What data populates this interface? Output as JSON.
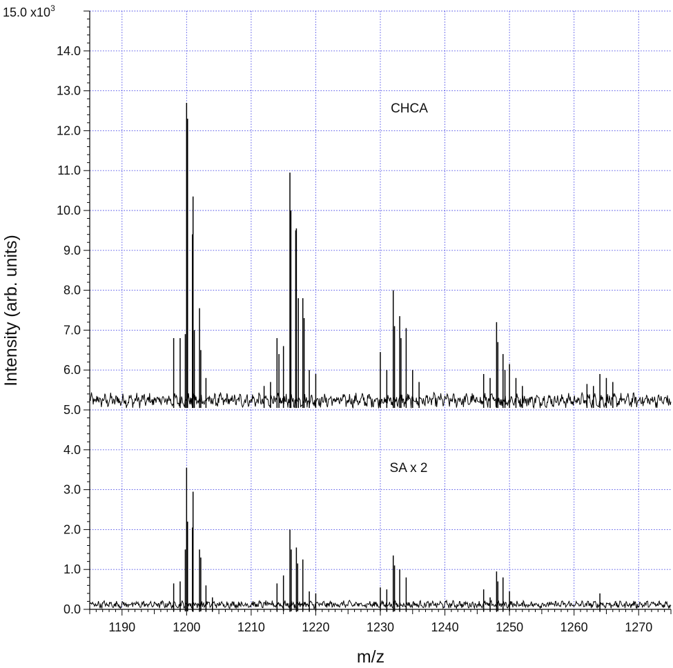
{
  "chart_data": {
    "type": "line",
    "title": "",
    "xlabel": "m/z",
    "ylabel": "Intensity (arb. units)",
    "xlim": [
      1185,
      1275
    ],
    "ylim": [
      0,
      15000
    ],
    "x_ticks": [
      1190,
      1200,
      1210,
      1220,
      1230,
      1240,
      1250,
      1260,
      1270
    ],
    "x_tick_labels": [
      "1190",
      "1200",
      "1210",
      "1220",
      "1230",
      "1240",
      "1250",
      "1260",
      "1270"
    ],
    "y_ticks": [
      0,
      1000,
      2000,
      3000,
      4000,
      5000,
      6000,
      7000,
      8000,
      9000,
      10000,
      11000,
      12000,
      13000,
      14000,
      15000
    ],
    "y_tick_labels": [
      "0.0",
      "1.0",
      "2.0",
      "3.0",
      "4.0",
      "5.0",
      "6.0",
      "7.0",
      "8.0",
      "9.0",
      "10.0",
      "11.0",
      "12.0",
      "13.0",
      "14.0",
      "15.0"
    ],
    "y_multiplier_label": "x10",
    "y_multiplier_exponent": "3",
    "grid": true,
    "series": [
      {
        "name": "CHCA",
        "baseline": 5200,
        "peaks": [
          {
            "x": 1198.0,
            "y": 6800
          },
          {
            "x": 1199.0,
            "y": 6800
          },
          {
            "x": 1199.8,
            "y": 6900
          },
          {
            "x": 1200.0,
            "y": 12700
          },
          {
            "x": 1200.15,
            "y": 12300
          },
          {
            "x": 1200.9,
            "y": 9400
          },
          {
            "x": 1201.0,
            "y": 10350
          },
          {
            "x": 1201.2,
            "y": 7000
          },
          {
            "x": 1202.0,
            "y": 7550
          },
          {
            "x": 1202.2,
            "y": 6500
          },
          {
            "x": 1203.0,
            "y": 5800
          },
          {
            "x": 1212.0,
            "y": 5600
          },
          {
            "x": 1213.0,
            "y": 5700
          },
          {
            "x": 1214.0,
            "y": 6800
          },
          {
            "x": 1214.3,
            "y": 6400
          },
          {
            "x": 1215.0,
            "y": 6600
          },
          {
            "x": 1216.0,
            "y": 10950
          },
          {
            "x": 1216.15,
            "y": 10000
          },
          {
            "x": 1216.9,
            "y": 9500
          },
          {
            "x": 1217.0,
            "y": 9550
          },
          {
            "x": 1217.3,
            "y": 7800
          },
          {
            "x": 1218.0,
            "y": 7800
          },
          {
            "x": 1218.2,
            "y": 7300
          },
          {
            "x": 1219.0,
            "y": 6000
          },
          {
            "x": 1220.0,
            "y": 5900
          },
          {
            "x": 1230.0,
            "y": 6450
          },
          {
            "x": 1231.0,
            "y": 6000
          },
          {
            "x": 1232.0,
            "y": 8000
          },
          {
            "x": 1232.2,
            "y": 7100
          },
          {
            "x": 1233.0,
            "y": 7350
          },
          {
            "x": 1233.2,
            "y": 6800
          },
          {
            "x": 1234.0,
            "y": 7050
          },
          {
            "x": 1235.0,
            "y": 6000
          },
          {
            "x": 1236.0,
            "y": 5700
          },
          {
            "x": 1246.0,
            "y": 5900
          },
          {
            "x": 1247.0,
            "y": 5800
          },
          {
            "x": 1248.0,
            "y": 7200
          },
          {
            "x": 1248.2,
            "y": 6700
          },
          {
            "x": 1249.0,
            "y": 6400
          },
          {
            "x": 1249.3,
            "y": 6000
          },
          {
            "x": 1250.0,
            "y": 6150
          },
          {
            "x": 1251.0,
            "y": 5800
          },
          {
            "x": 1252.0,
            "y": 5600
          },
          {
            "x": 1262.0,
            "y": 5650
          },
          {
            "x": 1263.0,
            "y": 5600
          },
          {
            "x": 1264.0,
            "y": 5900
          },
          {
            "x": 1265.0,
            "y": 5800
          },
          {
            "x": 1266.0,
            "y": 5700
          }
        ]
      },
      {
        "name": "SA x 2",
        "baseline": 100,
        "peaks": [
          {
            "x": 1198.0,
            "y": 650
          },
          {
            "x": 1199.0,
            "y": 700
          },
          {
            "x": 1199.8,
            "y": 1500
          },
          {
            "x": 1200.0,
            "y": 3550
          },
          {
            "x": 1200.15,
            "y": 2200
          },
          {
            "x": 1200.9,
            "y": 2050
          },
          {
            "x": 1201.0,
            "y": 2950
          },
          {
            "x": 1202.0,
            "y": 1500
          },
          {
            "x": 1202.2,
            "y": 1300
          },
          {
            "x": 1203.0,
            "y": 600
          },
          {
            "x": 1204.0,
            "y": 300
          },
          {
            "x": 1214.0,
            "y": 650
          },
          {
            "x": 1215.0,
            "y": 850
          },
          {
            "x": 1216.0,
            "y": 2000
          },
          {
            "x": 1216.2,
            "y": 1500
          },
          {
            "x": 1217.0,
            "y": 1550
          },
          {
            "x": 1217.2,
            "y": 1150
          },
          {
            "x": 1218.0,
            "y": 1250
          },
          {
            "x": 1219.0,
            "y": 450
          },
          {
            "x": 1220.0,
            "y": 400
          },
          {
            "x": 1230.0,
            "y": 550
          },
          {
            "x": 1231.0,
            "y": 500
          },
          {
            "x": 1232.0,
            "y": 1350
          },
          {
            "x": 1232.2,
            "y": 1100
          },
          {
            "x": 1233.0,
            "y": 1000
          },
          {
            "x": 1234.0,
            "y": 800
          },
          {
            "x": 1246.0,
            "y": 500
          },
          {
            "x": 1247.0,
            "y": 300
          },
          {
            "x": 1248.0,
            "y": 950
          },
          {
            "x": 1248.2,
            "y": 700
          },
          {
            "x": 1249.0,
            "y": 800
          },
          {
            "x": 1250.0,
            "y": 450
          },
          {
            "x": 1264.0,
            "y": 400
          }
        ]
      }
    ]
  }
}
